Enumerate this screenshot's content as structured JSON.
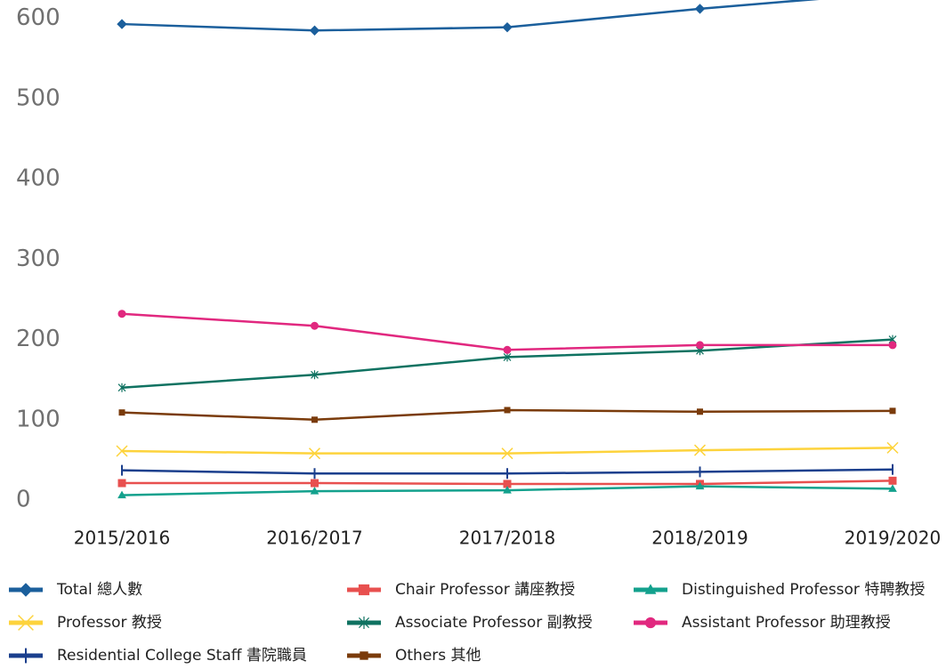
{
  "chart_data": {
    "type": "line",
    "categories": [
      "2015/2016",
      "2016/2017",
      "2017/2018",
      "2018/2019",
      "2019/2020"
    ],
    "ylim": [
      0,
      623
    ],
    "yticks": [
      0,
      100,
      200,
      300,
      400,
      500,
      600
    ],
    "series": [
      {
        "name": "Total 總人數",
        "color": "#1b5f9c",
        "marker": "diamond",
        "values": [
          593,
          585,
          589,
          612,
          632
        ]
      },
      {
        "name": "Chair Professor 講座教授",
        "color": "#e8504f",
        "marker": "square",
        "values": [
          21,
          21,
          20,
          20,
          24
        ]
      },
      {
        "name": "Distinguished Professor 特聘教授",
        "color": "#13a18d",
        "marker": "triangle",
        "values": [
          6,
          11,
          12,
          17,
          14
        ]
      },
      {
        "name": "Professor 教授",
        "color": "#fdd33c",
        "marker": "x",
        "values": [
          61,
          58,
          58,
          62,
          65
        ]
      },
      {
        "name": "Associate Professor 副教授",
        "color": "#0f7261",
        "marker": "asterisk",
        "values": [
          140,
          156,
          178,
          186,
          200
        ]
      },
      {
        "name": "Assistant Professor 助理教授",
        "color": "#e1287f",
        "marker": "circle",
        "values": [
          232,
          217,
          187,
          193,
          193
        ]
      },
      {
        "name": "Residential College Staff 書院職員",
        "color": "#1b3f8d",
        "marker": "plus",
        "values": [
          37,
          33,
          33,
          35,
          38
        ]
      },
      {
        "name": "Others 其他",
        "color": "#7a3b0b",
        "marker": "smallsquare",
        "values": [
          109,
          100,
          112,
          110,
          111
        ]
      }
    ]
  }
}
